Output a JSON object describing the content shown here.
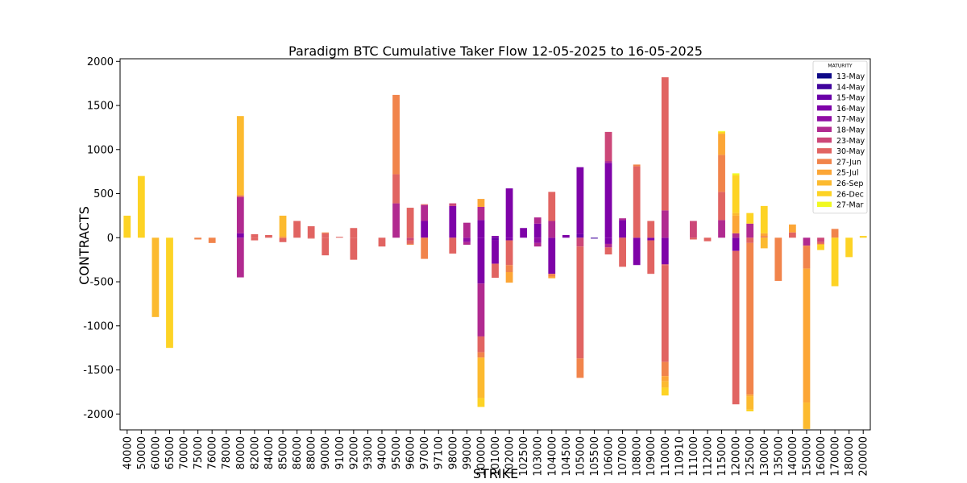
{
  "chart_data": {
    "type": "bar",
    "stacked": true,
    "title": "Paradigm BTC Cumulative Taker Flow 12-05-2025 to 16-05-2025",
    "xlabel": "STRIKE",
    "ylabel": "CONTRACTS",
    "ylim": [
      -2180,
      2030
    ],
    "yticks": [
      -2000,
      -1500,
      -1000,
      -500,
      0,
      500,
      1000,
      1500,
      2000
    ],
    "legend_title": "MATURITY",
    "legend_position": "top-right",
    "grid": false,
    "categories": [
      "40000",
      "50000",
      "60000",
      "65000",
      "70000",
      "75000",
      "76000",
      "78000",
      "80000",
      "82000",
      "84000",
      "85000",
      "86000",
      "88000",
      "90000",
      "91000",
      "92000",
      "93000",
      "94000",
      "95000",
      "96000",
      "97000",
      "97100",
      "98000",
      "99000",
      "100000",
      "101000",
      "102000",
      "102500",
      "103000",
      "104000",
      "104500",
      "105000",
      "105500",
      "106000",
      "107000",
      "108000",
      "109000",
      "110000",
      "110910",
      "111000",
      "112000",
      "115000",
      "120000",
      "125000",
      "130000",
      "135000",
      "140000",
      "150000",
      "160000",
      "170000",
      "180000",
      "200000"
    ],
    "series": [
      {
        "name": "13-May",
        "color": "#0d0887",
        "values": {}
      },
      {
        "name": "14-May",
        "color": "#41049d",
        "values": {
          "105500": -10
        }
      },
      {
        "name": "15-May",
        "color": "#6a00a8",
        "values": {
          "101000": -25,
          "105000": 40
        }
      },
      {
        "name": "16-May",
        "color": "#7e03a8",
        "values": {
          "80000": 50,
          "97000": 190,
          "98000": 360,
          "100000": 200,
          "100000n": -520,
          "101000": 20,
          "101000n": -270,
          "102000": 560,
          "102000n": -30,
          "102500": 110,
          "103000": 160,
          "104000": -410,
          "104500": 30,
          "105000": 760,
          "106000": 850,
          "106000n": -70,
          "107000": 200,
          "108000": -310,
          "109000": -30,
          "110000": -300,
          "120000": -150
        }
      },
      {
        "name": "17-May",
        "color": "#8f0da4",
        "values": {
          "99000": -50,
          "103000": -60
        }
      },
      {
        "name": "18-May",
        "color": "#b12a90",
        "values": {
          "80000": 410,
          "80000n": -450,
          "95000": 390,
          "97000": 180,
          "99000": 170,
          "99000n": -30,
          "100000": 150,
          "100000n": -600,
          "103000": 70,
          "103000n": -40,
          "104000": 190,
          "106000": 20,
          "106000n": -40,
          "107000": 20,
          "110000": 310,
          "115000": 200,
          "120000": 50,
          "125000": 160,
          "150000": -90
        }
      },
      {
        "name": "23-May",
        "color": "#cc4778",
        "values": {
          "96000": -30,
          "98000": 30,
          "105000": -100,
          "106000": 330,
          "110000": -10,
          "111000": 190,
          "160000": -50
        }
      },
      {
        "name": "30-May",
        "color": "#e16462",
        "values": {
          "80000": 20,
          "82000": 40,
          "82000n": -30,
          "84000": 30,
          "85000": -50,
          "86000": 190,
          "88000": 130,
          "88000n": -10,
          "90000": 50,
          "90000n": -200,
          "91000": 10,
          "92000": 110,
          "92000n": -250,
          "94000": -100,
          "95000": 330,
          "96000": 340,
          "96000n": -40,
          "97000": 10,
          "98000": -180,
          "100000": -180,
          "101000": -160,
          "102000": -280,
          "104000": 330,
          "105000": -1270,
          "106000": -80,
          "107000": -330,
          "108000": 810,
          "109000": 190,
          "109000n": -380,
          "110000": 1510,
          "110000n": -1100,
          "111000": -20,
          "112000": -40,
          "115000": 320,
          "120000": -1740,
          "125000": -60,
          "140000": 60,
          "160000": -20
        }
      },
      {
        "name": "27-Jun",
        "color": "#f1844b",
        "values": {
          "75000": -20,
          "76000": -60,
          "90000": 10,
          "95000": 900,
          "96000": -10,
          "97000": -240,
          "100000": -60,
          "102000": -80,
          "104000": -30,
          "105000": -220,
          "108000": 20,
          "110000": -160,
          "115000": 420,
          "125000": -1720,
          "130000": 20,
          "135000": -490,
          "150000": -260,
          "170000": 100
        }
      },
      {
        "name": "25-Jul",
        "color": "#fca636",
        "values": {
          "85000": 20,
          "100000": 90,
          "102000": -120,
          "104000": -20,
          "110000": -60,
          "115000": 240,
          "120000": 200,
          "125000": -20,
          "130000": 30,
          "140000": 90,
          "150000": -1520,
          "160000": -10
        }
      },
      {
        "name": "26-Sep",
        "color": "#fcba2f",
        "values": {
          "60000": -900,
          "80000": 900,
          "85000": 230,
          "100000": -460,
          "110000": -70,
          "120000": 30,
          "125000": -150,
          "130000": -120,
          "150000": -300
        }
      },
      {
        "name": "26-Dec",
        "color": "#fdd325",
        "values": {
          "40000": 250,
          "50000": 700,
          "65000": -1250,
          "100000": -100,
          "110000": -90,
          "115000": 20,
          "120000": 430,
          "125000": 120,
          "125000n": -20,
          "130000": 310,
          "160000": -60,
          "170000": -550,
          "180000": -220,
          "200000": 20
        }
      },
      {
        "name": "27-Mar",
        "color": "#f0f921",
        "values": {
          "115000": 10,
          "120000": 20
        }
      }
    ]
  }
}
